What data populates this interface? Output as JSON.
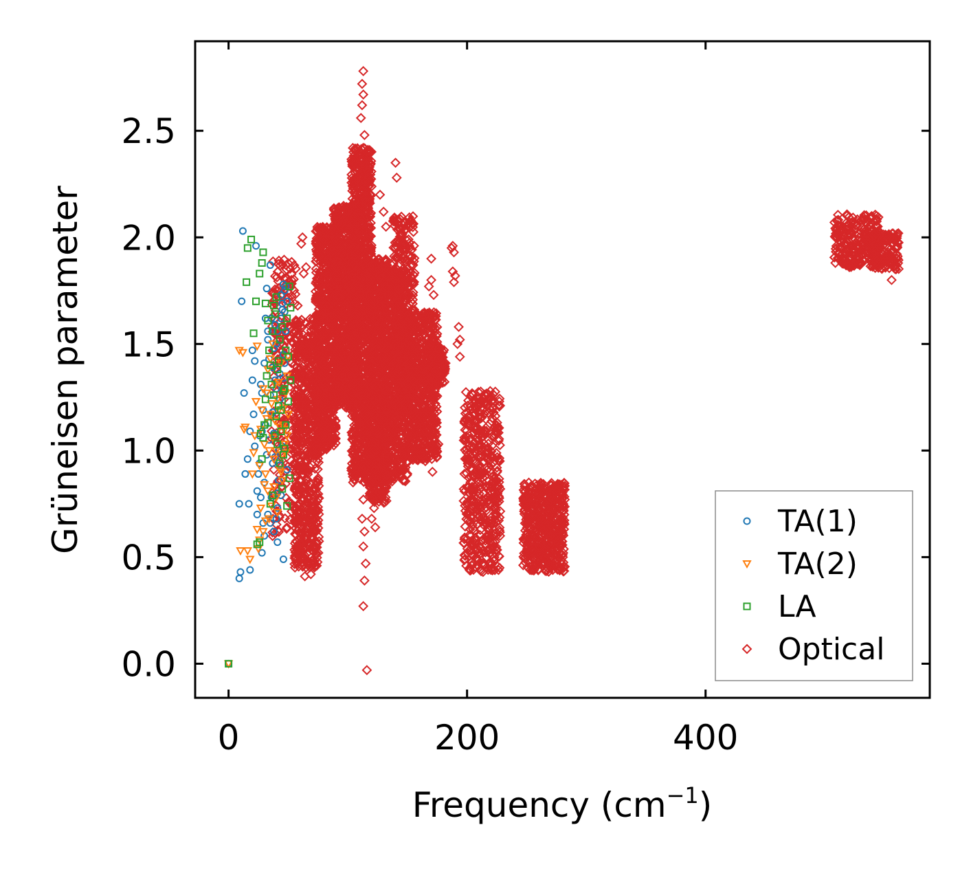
{
  "chart_data": {
    "type": "scatter",
    "xlabel_main": "Frequency (cm",
    "xlabel_sup": "−1",
    "xlabel_end": ")",
    "ylabel": "Grüneisen parameter",
    "xlim": [
      -28,
      588
    ],
    "ylim": [
      -0.16,
      2.92
    ],
    "xticks": [
      0,
      200,
      400
    ],
    "xtick_labels": [
      "0",
      "200",
      "400"
    ],
    "yticks": [
      0.0,
      0.5,
      1.0,
      1.5,
      2.0,
      2.5
    ],
    "ytick_labels": [
      "0.0",
      "0.5",
      "1.0",
      "1.5",
      "2.0",
      "2.5"
    ],
    "legend_position": "lower-right",
    "series": [
      {
        "name": "TA(1)",
        "marker": "circle",
        "color": "#1f77b4",
        "points": [
          [
            0,
            0
          ],
          [
            9,
            0.4
          ],
          [
            10,
            0.43
          ],
          [
            11,
            1.7
          ],
          [
            12,
            2.03
          ],
          [
            13,
            1.27
          ],
          [
            14,
            0.89
          ],
          [
            9,
            0.75
          ],
          [
            17,
            0.75
          ],
          [
            18,
            0.44
          ],
          [
            20,
            1.47
          ],
          [
            21,
            1.17
          ],
          [
            22,
            1.42
          ],
          [
            23,
            1.96
          ],
          [
            24,
            0.7
          ],
          [
            25,
            0.89
          ],
          [
            26,
            1.07
          ],
          [
            27,
            1.31
          ],
          [
            28,
            1.27
          ],
          [
            29,
            0.66
          ],
          [
            30,
            0.85
          ],
          [
            31,
            1.62
          ],
          [
            32,
            1.76
          ],
          [
            33,
            1.52
          ],
          [
            34,
            1.43
          ],
          [
            35,
            1.87
          ],
          [
            36,
            1.17
          ],
          [
            37,
            0.94
          ],
          [
            38,
            0.62
          ],
          [
            39,
            1.33
          ],
          [
            40,
            1.5
          ],
          [
            41,
            0.8
          ],
          [
            42,
            1.0
          ],
          [
            43,
            1.24
          ],
          [
            44,
            1.62
          ],
          [
            45,
            1.69
          ],
          [
            46,
            1.78
          ],
          [
            47,
            1.41
          ],
          [
            48,
            1.12
          ],
          [
            49,
            0.91
          ],
          [
            46,
            0.49
          ],
          [
            41,
            0.57
          ],
          [
            44,
            1.73
          ],
          [
            47,
            1.75
          ],
          [
            45,
            1.66
          ],
          [
            42,
            1.21
          ],
          [
            38,
            1.08
          ],
          [
            36,
            0.78
          ],
          [
            33,
            0.7
          ],
          [
            30,
            0.6
          ],
          [
            28,
            1.09
          ],
          [
            26,
            0.94
          ],
          [
            24,
            0.81
          ],
          [
            22,
            1.02
          ],
          [
            20,
            1.33
          ],
          [
            18,
            1.09
          ],
          [
            16,
            0.96
          ],
          [
            43,
            1.36
          ],
          [
            40,
            0.68
          ],
          [
            39,
            1.59
          ],
          [
            37,
            1.39
          ],
          [
            35,
            1.26
          ],
          [
            34,
            1.05
          ],
          [
            31,
            1.12
          ],
          [
            29,
            1.19
          ],
          [
            27,
            0.78
          ],
          [
            48,
            1.56
          ],
          [
            46,
            1.34
          ],
          [
            45,
            1.02
          ],
          [
            44,
            0.79
          ],
          [
            42,
            0.86
          ],
          [
            41,
            1.56
          ],
          [
            40,
            1.29
          ],
          [
            38,
            1.48
          ],
          [
            36,
            1.62
          ],
          [
            32,
            0.98
          ],
          [
            30,
            1.41
          ],
          [
            28,
            0.52
          ],
          [
            47,
            1.65
          ],
          [
            49,
            1.7
          ],
          [
            48,
            1.77
          ],
          [
            46,
            1.45
          ],
          [
            43,
            0.93
          ],
          [
            41,
            0.73
          ],
          [
            39,
            0.97
          ],
          [
            37,
            1.18
          ],
          [
            35,
            0.66
          ],
          [
            33,
            1.56
          ]
        ]
      },
      {
        "name": "TA(2)",
        "marker": "triangle-down",
        "color": "#ff7f0e",
        "points": [
          [
            0,
            0
          ],
          [
            9,
            1.47
          ],
          [
            10,
            0.53
          ],
          [
            12,
            1.46
          ],
          [
            13,
            1.1
          ],
          [
            14,
            1.11
          ],
          [
            16,
            0.53
          ],
          [
            18,
            0.49
          ],
          [
            20,
            0.89
          ],
          [
            21,
            0.99
          ],
          [
            22,
            1.07
          ],
          [
            23,
            1.23
          ],
          [
            24,
            1.49
          ],
          [
            25,
            0.54
          ],
          [
            26,
            0.93
          ],
          [
            27,
            1.1
          ],
          [
            28,
            1.19
          ],
          [
            29,
            1.29
          ],
          [
            30,
            0.84
          ],
          [
            31,
            0.89
          ],
          [
            32,
            1.27
          ],
          [
            33,
            0.81
          ],
          [
            34,
            1.0
          ],
          [
            35,
            1.17
          ],
          [
            36,
            1.22
          ],
          [
            37,
            1.06
          ],
          [
            38,
            0.96
          ],
          [
            39,
            1.14
          ],
          [
            40,
            0.78
          ],
          [
            41,
            0.71
          ],
          [
            42,
            1.32
          ],
          [
            43,
            1.11
          ],
          [
            44,
            1.41
          ],
          [
            45,
            0.98
          ],
          [
            46,
            1.2
          ],
          [
            47,
            1.03
          ],
          [
            48,
            1.27
          ],
          [
            49,
            1.35
          ],
          [
            50,
            1.44
          ],
          [
            27,
            0.73
          ],
          [
            29,
            0.62
          ],
          [
            31,
            0.67
          ],
          [
            33,
            1.38
          ],
          [
            35,
            1.43
          ],
          [
            37,
            1.5
          ],
          [
            39,
            1.31
          ],
          [
            41,
            1.24
          ],
          [
            43,
            0.91
          ],
          [
            45,
            0.86
          ],
          [
            47,
            1.1
          ],
          [
            49,
            1.07
          ],
          [
            34,
            0.68
          ],
          [
            36,
            0.74
          ],
          [
            38,
            0.83
          ],
          [
            40,
            1.0
          ],
          [
            42,
            1.19
          ],
          [
            44,
            0.9
          ],
          [
            46,
            1.12
          ],
          [
            48,
            0.99
          ],
          [
            50,
            1.17
          ],
          [
            32,
            1.15
          ],
          [
            30,
            1.03
          ],
          [
            26,
            0.58
          ],
          [
            24,
            0.63
          ]
        ]
      },
      {
        "name": "LA",
        "marker": "square",
        "color": "#2ca02c",
        "points": [
          [
            0,
            0
          ],
          [
            15,
            1.79
          ],
          [
            16,
            1.95
          ],
          [
            19,
            1.99
          ],
          [
            21,
            1.55
          ],
          [
            23,
            1.7
          ],
          [
            26,
            1.83
          ],
          [
            28,
            1.88
          ],
          [
            29,
            1.93
          ],
          [
            31,
            1.69
          ],
          [
            33,
            1.61
          ],
          [
            35,
            1.4
          ],
          [
            37,
            1.56
          ],
          [
            39,
            1.64
          ],
          [
            41,
            1.38
          ],
          [
            43,
            1.52
          ],
          [
            45,
            1.58
          ],
          [
            47,
            1.29
          ],
          [
            49,
            1.62
          ],
          [
            51,
            1.77
          ],
          [
            52,
            1.33
          ],
          [
            50,
            1.23
          ],
          [
            48,
            1.12
          ],
          [
            46,
            0.98
          ],
          [
            44,
            1.09
          ],
          [
            42,
            1.21
          ],
          [
            40,
            1.16
          ],
          [
            38,
            1.26
          ],
          [
            36,
            1.31
          ],
          [
            34,
            1.47
          ],
          [
            32,
            1.35
          ],
          [
            30,
            1.12
          ],
          [
            28,
            0.96
          ],
          [
            26,
            0.57
          ],
          [
            24,
            0.56
          ],
          [
            49,
            0.74
          ],
          [
            51,
            0.87
          ],
          [
            47,
            1.01
          ],
          [
            45,
            0.82
          ],
          [
            43,
            0.94
          ],
          [
            41,
            1.03
          ],
          [
            39,
            1.07
          ],
          [
            37,
            0.79
          ],
          [
            35,
            0.75
          ],
          [
            33,
            1.13
          ],
          [
            31,
            1.24
          ],
          [
            29,
            1.06
          ],
          [
            27,
            1.08
          ],
          [
            50,
            1.44
          ],
          [
            52,
            1.67
          ],
          [
            48,
            1.47
          ],
          [
            46,
            1.28
          ],
          [
            44,
            1.19
          ],
          [
            42,
            1.42
          ],
          [
            40,
            1.72
          ],
          [
            38,
            1.68
          ]
        ]
      },
      {
        "name": "Optical",
        "marker": "diamond",
        "color": "#d62728",
        "clusters": [
          {
            "x": [
              36,
              57
            ],
            "y": [
              0.55,
              1.9
            ],
            "n": 220
          },
          {
            "x": [
              55,
              76
            ],
            "y": [
              0.45,
              1.62
            ],
            "n": 700
          },
          {
            "x": [
              73,
              90
            ],
            "y": [
              1.0,
              2.05
            ],
            "n": 750
          },
          {
            "x": [
              88,
              108
            ],
            "y": [
              1.2,
              2.15
            ],
            "n": 900
          },
          {
            "x": [
              103,
              120
            ],
            "y": [
              0.85,
              2.42
            ],
            "n": 1100
          },
          {
            "x": [
              118,
              133
            ],
            "y": [
              0.75,
              1.9
            ],
            "n": 800
          },
          {
            "x": [
              130,
              150
            ],
            "y": [
              0.85,
              1.85
            ],
            "n": 700
          },
          {
            "x": [
              138,
              156
            ],
            "y": [
              1.15,
              2.1
            ],
            "n": 400
          },
          {
            "x": [
              150,
              175
            ],
            "y": [
              0.95,
              1.65
            ],
            "n": 600
          },
          {
            "x": [
              165,
              182
            ],
            "y": [
              1.3,
              1.5
            ],
            "n": 150
          },
          {
            "x": [
              197,
              228
            ],
            "y": [
              0.43,
              1.28
            ],
            "n": 500
          },
          {
            "x": [
              247,
              282
            ],
            "y": [
              0.43,
              0.85
            ],
            "n": 500
          },
          {
            "x": [
              508,
              545
            ],
            "y": [
              1.86,
              2.11
            ],
            "n": 250
          },
          {
            "x": [
              540,
              562
            ],
            "y": [
              1.85,
              2.02
            ],
            "n": 150
          }
        ],
        "points": [
          [
            113,
            2.78
          ],
          [
            112,
            2.72
          ],
          [
            113,
            2.67
          ],
          [
            112,
            2.62
          ],
          [
            111,
            2.56
          ],
          [
            114,
            2.48
          ],
          [
            113,
            2.42
          ],
          [
            112,
            2.36
          ],
          [
            140,
            2.35
          ],
          [
            141,
            2.28
          ],
          [
            127,
            2.2
          ],
          [
            130,
            2.12
          ],
          [
            132,
            2.05
          ],
          [
            62,
            2.0
          ],
          [
            61,
            1.97
          ],
          [
            65,
            1.86
          ],
          [
            63,
            1.83
          ],
          [
            58,
            1.68
          ],
          [
            170,
            1.9
          ],
          [
            170,
            1.8
          ],
          [
            168,
            1.77
          ],
          [
            172,
            1.73
          ],
          [
            188,
            1.96
          ],
          [
            189,
            1.93
          ],
          [
            187,
            1.95
          ],
          [
            190,
            1.82
          ],
          [
            189,
            1.79
          ],
          [
            188,
            1.84
          ],
          [
            193,
            1.58
          ],
          [
            194,
            1.52
          ],
          [
            194,
            1.44
          ],
          [
            192,
            1.5
          ],
          [
            182,
            1.41
          ],
          [
            176,
            1.03
          ],
          [
            171,
            0.9
          ],
          [
            165,
            0.95
          ],
          [
            163,
            0.99
          ],
          [
            69,
            0.42
          ],
          [
            64,
            0.41
          ],
          [
            113,
            0.27
          ],
          [
            114,
            0.39
          ],
          [
            115,
            0.47
          ],
          [
            113,
            0.55
          ],
          [
            114,
            0.62
          ],
          [
            112,
            0.68
          ],
          [
            113,
            0.77
          ],
          [
            122,
            0.73
          ],
          [
            120,
            0.68
          ],
          [
            123,
            0.64
          ],
          [
            116,
            -0.03
          ],
          [
            131,
            1.06
          ],
          [
            128,
            0.79
          ],
          [
            282,
            0.77
          ],
          [
            281,
            0.72
          ],
          [
            280,
            0.67
          ],
          [
            556,
            1.8
          ],
          [
            556,
            1.88
          ],
          [
            553,
            1.93
          ]
        ]
      }
    ]
  }
}
